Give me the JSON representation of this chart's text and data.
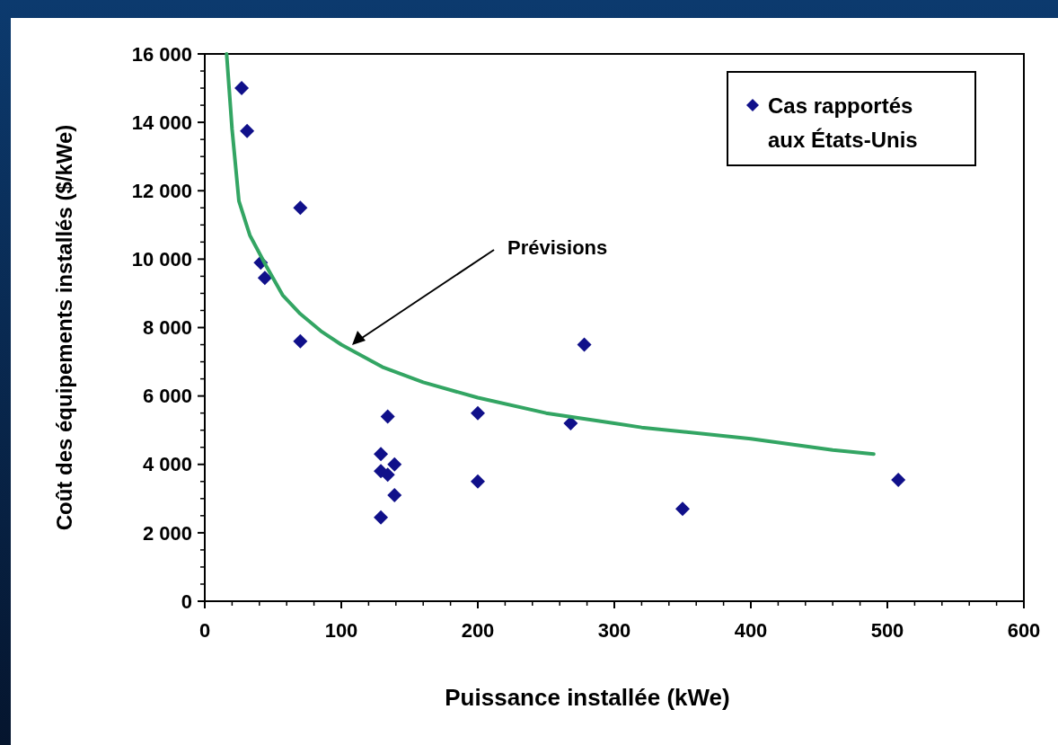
{
  "chart_data": {
    "type": "scatter",
    "xlabel": "Puissance installée (kWe)",
    "ylabel": "Coût des équipements installés ($/kWe)",
    "xlim": [
      0,
      600
    ],
    "xticks": [
      0,
      100,
      200,
      300,
      400,
      500,
      600
    ],
    "ylim": [
      0,
      16000
    ],
    "yticks": [
      {
        "value": 0,
        "label": "0"
      },
      {
        "value": 2000,
        "label": "2 000"
      },
      {
        "value": 4000,
        "label": "4 000"
      },
      {
        "value": 6000,
        "label": "6 000"
      },
      {
        "value": 8000,
        "label": "8 000"
      },
      {
        "value": 10000,
        "label": "10 000"
      },
      {
        "value": 12000,
        "label": "12 000"
      },
      {
        "value": 14000,
        "label": "14 000"
      },
      {
        "value": 16000,
        "label": "16 000"
      }
    ],
    "grid": false,
    "legend": "top right",
    "series": [
      {
        "name": "Cas rapportés aux États-Unis",
        "marker": "diamond",
        "color": "#10108a",
        "x": [
          27,
          31,
          70,
          41,
          44,
          70,
          278,
          134,
          200,
          268,
          129,
          139,
          129,
          134,
          139,
          200,
          129,
          350,
          508
        ],
        "values": [
          15000,
          13750,
          11500,
          9900,
          9450,
          7600,
          7500,
          5400,
          5500,
          5200,
          4300,
          4000,
          3800,
          3700,
          3100,
          3500,
          2450,
          2700,
          3550
        ]
      },
      {
        "type": "line",
        "color": "#33a563",
        "x": [
          16,
          20,
          25,
          33,
          45,
          57,
          70,
          85,
          100,
          130,
          160,
          200,
          250,
          300,
          320,
          400,
          460,
          490
        ],
        "values": [
          16000,
          13800,
          11700,
          10700,
          9800,
          8950,
          8400,
          7900,
          7500,
          6850,
          6400,
          5950,
          5500,
          5200,
          5080,
          4750,
          4420,
          4300
        ]
      }
    ],
    "annotations": [
      "Prévisions"
    ]
  }
}
